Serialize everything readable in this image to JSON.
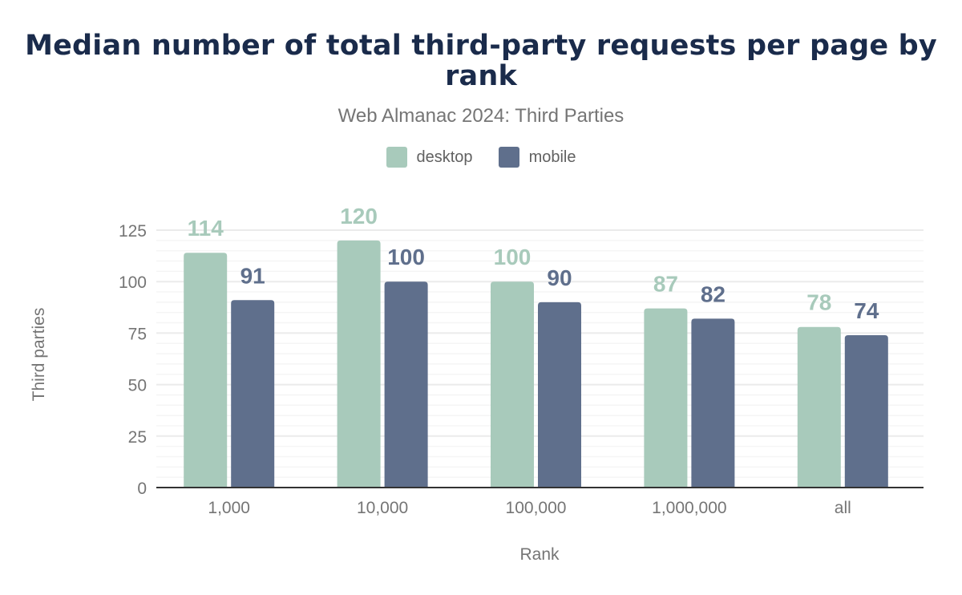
{
  "chart_data": {
    "type": "bar",
    "title": "Median number of total third-party requests per page by rank",
    "subtitle": "Web Almanac 2024: Third Parties",
    "xlabel": "Rank",
    "ylabel": "Third parties",
    "categories": [
      "1,000",
      "10,000",
      "100,000",
      "1,000,000",
      "all"
    ],
    "series": [
      {
        "name": "desktop",
        "color": "#a8cabb",
        "values": [
          114,
          120,
          100,
          87,
          78
        ]
      },
      {
        "name": "mobile",
        "color": "#5f6f8c",
        "values": [
          91,
          100,
          90,
          82,
          74
        ]
      }
    ],
    "ylim": [
      0,
      125
    ],
    "yticks": [
      0,
      25,
      50,
      75,
      100,
      125
    ],
    "grid": true,
    "legend_position": "top"
  }
}
